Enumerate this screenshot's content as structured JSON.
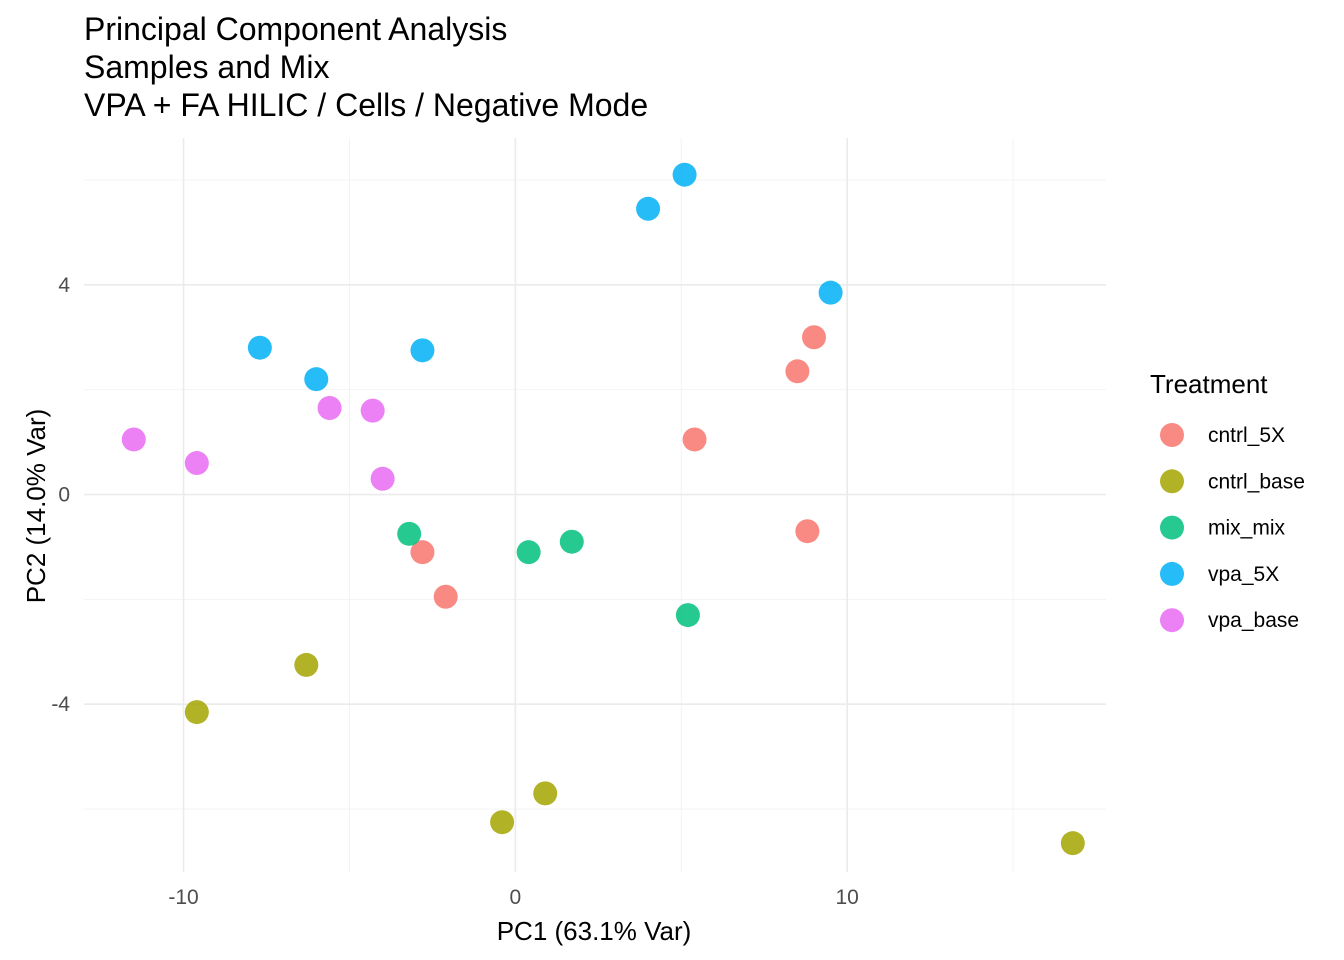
{
  "chart_data": {
    "type": "scatter",
    "title_lines": [
      "Principal Component Analysis",
      "Samples and Mix",
      "VPA + FA HILIC / Cells / Negative Mode"
    ],
    "xlabel": "PC1 (63.1% Var)",
    "ylabel": "PC2 (14.0% Var)",
    "xlim": [
      -13.0,
      17.8
    ],
    "ylim": [
      -7.2,
      6.8
    ],
    "x_ticks": [
      -10,
      0,
      10
    ],
    "x_tick_labels": [
      "-10",
      "0",
      "10"
    ],
    "y_ticks": [
      -4,
      0,
      4
    ],
    "y_tick_labels": [
      "-4",
      "0",
      "4"
    ],
    "x_minor": [
      -15,
      -5,
      5,
      15
    ],
    "y_minor": [
      -6,
      -2,
      2,
      6
    ],
    "grid": true,
    "legend": {
      "title": "Treatment",
      "position": "right"
    },
    "series": [
      {
        "name": "cntrl_5X",
        "color": "#F8766D",
        "points": [
          [
            9.0,
            3.0
          ],
          [
            8.5,
            2.35
          ],
          [
            5.4,
            1.05
          ],
          [
            8.8,
            -0.7
          ],
          [
            -2.8,
            -1.1
          ],
          [
            -2.1,
            -1.95
          ]
        ]
      },
      {
        "name": "cntrl_base",
        "color": "#A3A500",
        "points": [
          [
            -6.3,
            -3.25
          ],
          [
            -9.6,
            -4.15
          ],
          [
            0.9,
            -5.7
          ],
          [
            -0.4,
            -6.25
          ],
          [
            16.8,
            -6.65
          ]
        ]
      },
      {
        "name": "mix_mix",
        "color": "#00BF7D",
        "points": [
          [
            -3.2,
            -0.75
          ],
          [
            0.4,
            -1.1
          ],
          [
            1.7,
            -0.9
          ],
          [
            5.2,
            -2.3
          ]
        ]
      },
      {
        "name": "vpa_5X",
        "color": "#00B0F6",
        "points": [
          [
            5.1,
            6.1
          ],
          [
            4.0,
            5.45
          ],
          [
            9.5,
            3.85
          ],
          [
            -7.7,
            2.8
          ],
          [
            -6.0,
            2.2
          ],
          [
            -2.8,
            2.75
          ]
        ]
      },
      {
        "name": "vpa_base",
        "color": "#E76BF3",
        "points": [
          [
            -11.5,
            1.05
          ],
          [
            -9.6,
            0.6
          ],
          [
            -5.6,
            1.65
          ],
          [
            -4.3,
            1.6
          ],
          [
            -4.0,
            0.3
          ]
        ]
      }
    ]
  }
}
